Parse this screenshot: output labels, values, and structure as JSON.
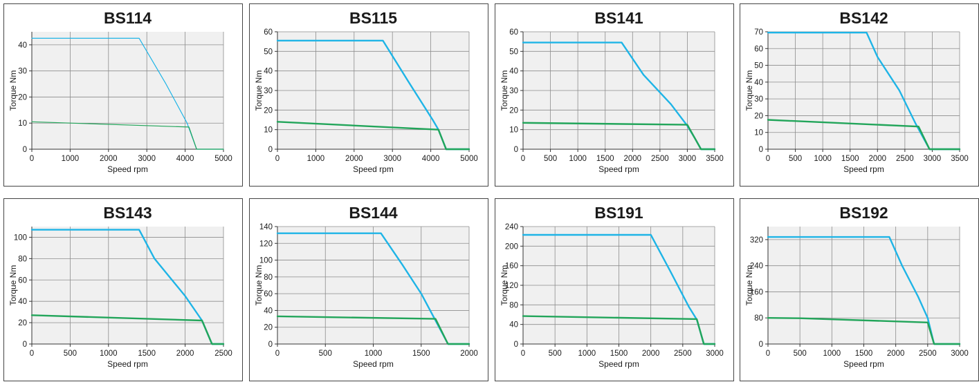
{
  "colors": {
    "peak": "#1eb4e6",
    "continuous": "#22a55a",
    "plot_bg": "#f0f0f0",
    "grid": "#8c8c8c"
  },
  "chart_data": [
    {
      "type": "line",
      "title": "BS114",
      "xlabel": "Speed rpm",
      "ylabel": "Torque Nm",
      "xlim": [
        0,
        5000
      ],
      "ylim": [
        0,
        45
      ],
      "xticks": [
        0,
        1000,
        2000,
        3000,
        4000,
        5000
      ],
      "yticks": [
        0,
        10,
        20,
        30,
        40
      ],
      "grid": true,
      "line_width": 1.2,
      "series": [
        {
          "key": "peak",
          "x": [
            0,
            2800,
            3500,
            4050,
            4300,
            5000
          ],
          "y": [
            42.5,
            42.5,
            25,
            10,
            0,
            0
          ]
        },
        {
          "key": "continuous",
          "x": [
            0,
            4100,
            4300,
            5000
          ],
          "y": [
            10.5,
            8.5,
            0,
            0
          ]
        }
      ]
    },
    {
      "type": "line",
      "title": "BS115",
      "xlabel": "Speed rpm",
      "ylabel": "Torque Nm",
      "xlim": [
        0,
        5000
      ],
      "ylim": [
        0,
        60
      ],
      "xticks": [
        0,
        1000,
        2000,
        3000,
        4000,
        5000
      ],
      "yticks": [
        0,
        10,
        20,
        30,
        40,
        50,
        60
      ],
      "grid": true,
      "line_width": 2.4,
      "series": [
        {
          "key": "peak",
          "x": [
            0,
            2750,
            3400,
            4050,
            4200,
            4400,
            5000
          ],
          "y": [
            55.5,
            55.5,
            35,
            15,
            10,
            0,
            0
          ]
        },
        {
          "key": "continuous",
          "x": [
            0,
            4200,
            4400,
            5000
          ],
          "y": [
            14,
            10,
            0,
            0
          ]
        }
      ]
    },
    {
      "type": "line",
      "title": "BS141",
      "xlabel": "Speed rpm",
      "ylabel": "Torque Nm",
      "xlim": [
        0,
        3500
      ],
      "ylim": [
        0,
        60
      ],
      "xticks": [
        0,
        500,
        1000,
        1500,
        2000,
        2500,
        3000,
        3500
      ],
      "yticks": [
        0,
        10,
        20,
        30,
        40,
        50,
        60
      ],
      "grid": true,
      "line_width": 2.4,
      "series": [
        {
          "key": "peak",
          "x": [
            0,
            1800,
            2200,
            2700,
            3000,
            3150,
            3250,
            3500
          ],
          "y": [
            54.5,
            54.5,
            38,
            23,
            12,
            5,
            0,
            0
          ]
        },
        {
          "key": "continuous",
          "x": [
            0,
            3000,
            3250,
            3500
          ],
          "y": [
            13.5,
            12.5,
            0,
            0
          ]
        }
      ]
    },
    {
      "type": "line",
      "title": "BS142",
      "xlabel": "Speed rpm",
      "ylabel": "Torque Nm",
      "xlim": [
        0,
        3500
      ],
      "ylim": [
        0,
        70
      ],
      "xticks": [
        0,
        500,
        1000,
        1500,
        2000,
        2500,
        3000,
        3500
      ],
      "yticks": [
        0,
        10,
        20,
        30,
        40,
        50,
        60,
        70
      ],
      "grid": true,
      "line_width": 2.4,
      "series": [
        {
          "key": "peak",
          "x": [
            0,
            1800,
            2000,
            2400,
            2700,
            2950,
            3500
          ],
          "y": [
            69.5,
            69.5,
            55,
            35,
            15,
            0,
            0
          ]
        },
        {
          "key": "continuous",
          "x": [
            0,
            2750,
            2950,
            3500
          ],
          "y": [
            17.5,
            13.5,
            0,
            0
          ]
        }
      ]
    },
    {
      "type": "line",
      "title": "BS143",
      "xlabel": "Speed rpm",
      "ylabel": "Torque Nm",
      "xlim": [
        0,
        2500
      ],
      "ylim": [
        0,
        110
      ],
      "xticks": [
        0,
        500,
        1000,
        1500,
        2000,
        2500
      ],
      "yticks": [
        0,
        20,
        40,
        60,
        80,
        100
      ],
      "grid": true,
      "line_width": 2.4,
      "series": [
        {
          "key": "peak",
          "x": [
            0,
            1400,
            1600,
            2000,
            2220,
            2350,
            2500
          ],
          "y": [
            107,
            107,
            80,
            45,
            22,
            0,
            0
          ]
        },
        {
          "key": "continuous",
          "x": [
            0,
            2220,
            2350,
            2500
          ],
          "y": [
            27,
            22,
            0,
            0
          ]
        }
      ]
    },
    {
      "type": "line",
      "title": "BS144",
      "xlabel": "Speed rpm",
      "ylabel": "Torque Nm",
      "xlim": [
        0,
        2000
      ],
      "ylim": [
        0,
        140
      ],
      "xticks": [
        0,
        500,
        1000,
        1500,
        2000
      ],
      "yticks": [
        0,
        20,
        40,
        60,
        80,
        100,
        120,
        140
      ],
      "grid": true,
      "line_width": 2.4,
      "series": [
        {
          "key": "peak",
          "x": [
            0,
            1080,
            1300,
            1500,
            1650,
            1780,
            2000
          ],
          "y": [
            132,
            132,
            95,
            60,
            28,
            0,
            0
          ]
        },
        {
          "key": "continuous",
          "x": [
            0,
            1650,
            1780,
            2000
          ],
          "y": [
            33,
            30,
            0,
            0
          ]
        }
      ]
    },
    {
      "type": "line",
      "title": "BS191",
      "xlabel": "Speed rpm",
      "ylabel": "Torque Nm",
      "xlim": [
        0,
        3000
      ],
      "ylim": [
        0,
        240
      ],
      "xticks": [
        0,
        500,
        1000,
        1500,
        2000,
        2500,
        3000
      ],
      "yticks": [
        0,
        40,
        80,
        120,
        160,
        200,
        240
      ],
      "grid": true,
      "line_width": 2.4,
      "series": [
        {
          "key": "peak",
          "x": [
            0,
            2000,
            2300,
            2600,
            2720,
            2830,
            3000
          ],
          "y": [
            223,
            223,
            150,
            75,
            50,
            0,
            0
          ]
        },
        {
          "key": "continuous",
          "x": [
            0,
            2720,
            2830,
            3000
          ],
          "y": [
            57,
            51,
            0,
            0
          ]
        }
      ]
    },
    {
      "type": "line",
      "title": "BS192",
      "xlabel": "Speed rpm",
      "ylabel": "Torque Nm",
      "xlim": [
        0,
        3000
      ],
      "ylim": [
        0,
        360
      ],
      "xticks": [
        0,
        500,
        1000,
        1500,
        2000,
        2500,
        3000
      ],
      "yticks": [
        0,
        80,
        160,
        240,
        320
      ],
      "grid": true,
      "line_width": 2.4,
      "series": [
        {
          "key": "peak",
          "x": [
            0,
            1900,
            2100,
            2350,
            2500,
            2600,
            3000
          ],
          "y": [
            328,
            328,
            240,
            145,
            80,
            0,
            0
          ]
        },
        {
          "key": "continuous",
          "x": [
            0,
            500,
            2500,
            2600,
            3000
          ],
          "y": [
            80,
            79,
            66,
            0,
            0
          ]
        }
      ]
    }
  ]
}
